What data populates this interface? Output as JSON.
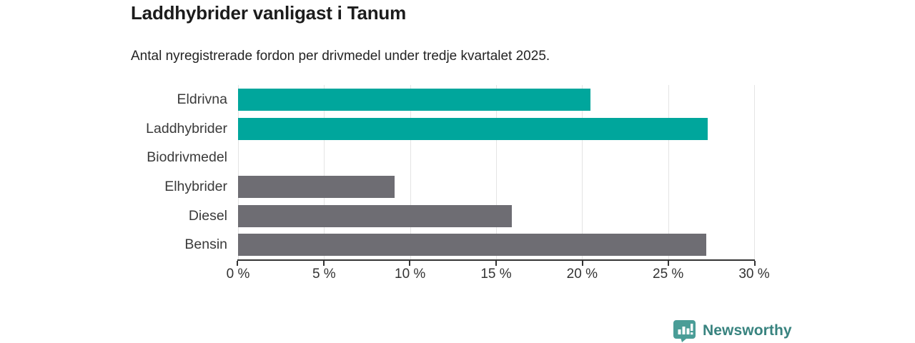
{
  "header": {
    "title": "Laddhybrider vanligast i Tanum",
    "subtitle": "Antal nyregistrerade fordon per drivmedel under tredje kvartalet 2025."
  },
  "branding": {
    "logo_text": "Newsworthy",
    "logo_icon": "bar-chart-speech-bubble-icon",
    "logo_text_color": "#38837f",
    "logo_icon_color": "#4a9d97"
  },
  "colors": {
    "highlight_bar": "#00a69c",
    "default_bar": "#6e6d73",
    "axis_line": "#333333",
    "gridline": "#e4e4e4",
    "title_text": "#1c1c1c",
    "label_text": "#3a3a3a",
    "background": "#ffffff"
  },
  "chart_data": {
    "type": "bar",
    "orientation": "horizontal",
    "title": "Laddhybrider vanligast i Tanum",
    "subtitle": "Antal nyregistrerade fordon per drivmedel under tredje kvartalet 2025.",
    "categories": [
      "Eldrivna",
      "Laddhybrider",
      "Biodrivmedel",
      "Elhybrider",
      "Diesel",
      "Bensin"
    ],
    "values": [
      20.5,
      27.3,
      0,
      9.1,
      15.9,
      27.2
    ],
    "bar_colors": [
      "#00a69c",
      "#00a69c",
      "#6e6d73",
      "#6e6d73",
      "#6e6d73",
      "#6e6d73"
    ],
    "xlabel": "",
    "ylabel": "",
    "xlim": [
      0,
      30
    ],
    "xticks": [
      0,
      5,
      10,
      15,
      20,
      25,
      30
    ],
    "xtick_suffix": " %",
    "grid": true,
    "legend": "none"
  }
}
